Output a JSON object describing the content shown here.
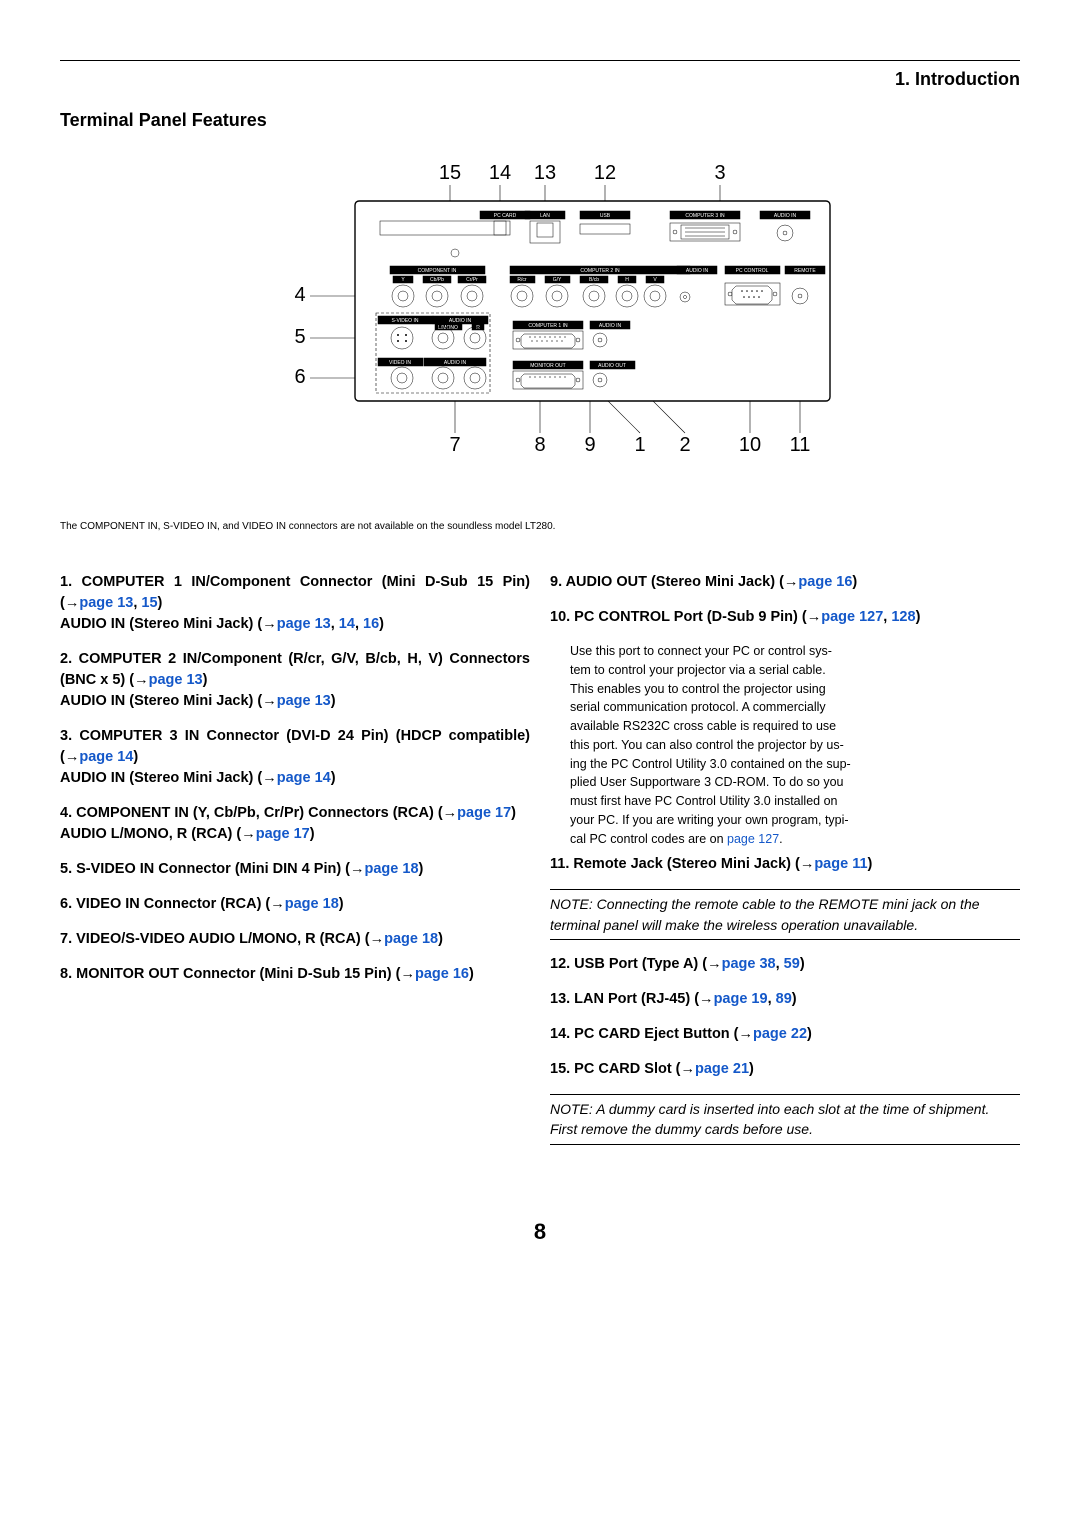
{
  "chapter": "1. Introduction",
  "section_title": "Terminal Panel Features",
  "callouts_top": [
    "15",
    "14",
    "13",
    "12",
    "3"
  ],
  "callouts_left": [
    "4",
    "5",
    "6"
  ],
  "callouts_bottom": [
    "7",
    "8",
    "9",
    "1",
    "2",
    "10",
    "11"
  ],
  "panel_labels": {
    "pc_card": "PC CARD",
    "lan": "LAN",
    "usb": "USB",
    "computer3": "COMPUTER 3 IN",
    "audio_in": "AUDIO IN",
    "component_in": "COMPONENT IN",
    "computer2": "COMPUTER 2 IN",
    "pc_control": "PC CONTROL",
    "remote": "REMOTE",
    "svideo_in": "S-VIDEO IN",
    "computer1": "COMPUTER 1 IN",
    "video_in": "VIDEO IN",
    "audio_l_mono": "L/MONO",
    "audio_r": "R",
    "monitor_out": "MONITOR OUT",
    "audio_out": "AUDIO OUT",
    "y": "Y",
    "cbpb": "Cb/Pb",
    "crpr": "Cr/Pr",
    "rcr": "R/cr",
    "gv": "G/V",
    "bcb": "B/cb",
    "h": "H",
    "v": "V"
  },
  "soundless_text": "The COMPONENT IN, S-VIDEO IN, and VIDEO IN connectors are not available on the soundless model LT280.",
  "left_items": [
    {
      "n": "1",
      "lines": [
        {
          "t": "COMPUTER 1 IN/Component Connector (Mini D-Sub 15 Pin) (→",
          "p": "page 13",
          "a": ", ",
          "p2": "15",
          "end": ")"
        },
        {
          "t": "AUDIO IN (Stereo Mini Jack) (→",
          "p": "page 13",
          "a": ", ",
          "p2": "14",
          "a2": ", ",
          "p3": "16",
          "end": ")"
        }
      ]
    },
    {
      "n": "2",
      "lines": [
        {
          "t": "COMPUTER 2 IN/Component (R/cr, G/V, B/cb, H, V) Connectors (BNC x 5) (→",
          "p": "page 13",
          "end": ")"
        },
        {
          "t": "AUDIO IN (Stereo Mini Jack) (→",
          "p": "page 13",
          "end": ")"
        }
      ]
    },
    {
      "n": "3",
      "lines": [
        {
          "t": "COMPUTER 3 IN Connector (DVI-D 24 Pin) (HDCP compatible) (→",
          "p": "page 14",
          "end": ")"
        },
        {
          "t": "AUDIO IN (Stereo Mini Jack) (→",
          "p": "page 14",
          "end": ")"
        }
      ]
    },
    {
      "n": "4",
      "lines": [
        {
          "t": "COMPONENT IN (Y, Cb/Pb, Cr/Pr) Connectors (RCA) (→",
          "p": "page 17",
          "end": ")"
        },
        {
          "t": "AUDIO L/MONO, R (RCA) (→",
          "p": "page 17",
          "end": ")"
        }
      ]
    },
    {
      "n": "5",
      "lines": [
        {
          "t": "S-VIDEO IN Connector (Mini DIN 4 Pin) (→",
          "p": "page 18",
          "end": ")"
        }
      ]
    },
    {
      "n": "6",
      "lines": [
        {
          "t": "VIDEO IN Connector (RCA) (→",
          "p": "page 18",
          "end": ")"
        }
      ]
    },
    {
      "n": "7",
      "lines": [
        {
          "t": "VIDEO/S-VIDEO AUDIO L/MONO, R (RCA) (→",
          "p": "page 18",
          "end": ")"
        }
      ]
    },
    {
      "n": "8",
      "lines": [
        {
          "t": "MONITOR OUT Connector (Mini D-Sub 15 Pin) (→",
          "p": "page 16",
          "end": ")"
        }
      ]
    }
  ],
  "right_items_a": [
    {
      "n": "9",
      "lines": [
        {
          "t": "AUDIO OUT (Stereo Mini Jack) (→",
          "p": "page 16",
          "end": ")"
        }
      ]
    },
    {
      "n": "10",
      "lines": [
        {
          "t": "PC CONTROL Port (D-Sub 9 Pin) (→",
          "p": "page 127",
          "a": ", ",
          "p2": "128",
          "end": ")"
        }
      ]
    }
  ],
  "pc_control_desc": [
    "Use this port to connect your PC or control sys-",
    "tem to control your projector via a serial cable.",
    "This enables you to control the projector using",
    "serial communication protocol. A commercially",
    "available RS232C cross cable is required to use",
    "this port. You can also control the projector by us-",
    "ing the PC Control Utility 3.0 contained on the sup-",
    "plied User Supportware 3 CD-ROM. To do so you",
    "must first have PC Control Utility 3.0 installed on",
    "your PC. If you are writing your own program, typi-"
  ],
  "pc_control_last": {
    "pre": "cal PC control codes are on ",
    "p": "page 127",
    "end": "."
  },
  "right_items_b": [
    {
      "n": "11",
      "lines": [
        {
          "t": "Remote Jack (Stereo Mini Jack) (→",
          "p": "page 11",
          "end": ")"
        }
      ]
    }
  ],
  "note1": "NOTE: Connecting the remote cable to the REMOTE mini jack on the terminal panel will make the wireless operation unavailable.",
  "right_items_c": [
    {
      "n": "12",
      "lines": [
        {
          "t": "USB Port (Type A) (→",
          "p": "page 38",
          "a": ", ",
          "p2": "59",
          "end": ")"
        }
      ]
    },
    {
      "n": "13",
      "lines": [
        {
          "t": "LAN Port (RJ-45) (→",
          "p": "page 19",
          "a": ", ",
          "p2": "89",
          "end": ")"
        }
      ]
    },
    {
      "n": "14",
      "lines": [
        {
          "t": "PC CARD Eject Button (→",
          "p": "page 22",
          "end": ")"
        }
      ]
    },
    {
      "n": "15",
      "lines": [
        {
          "t": "PC CARD Slot (→",
          "p": "page 21",
          "end": ")"
        }
      ]
    }
  ],
  "note2": "NOTE: A dummy card is inserted into each slot at the time of shipment. First remove the dummy cards before use.",
  "page_number": "8",
  "colors": {
    "link": "#1458c9",
    "text": "#000000",
    "bg": "#ffffff"
  }
}
